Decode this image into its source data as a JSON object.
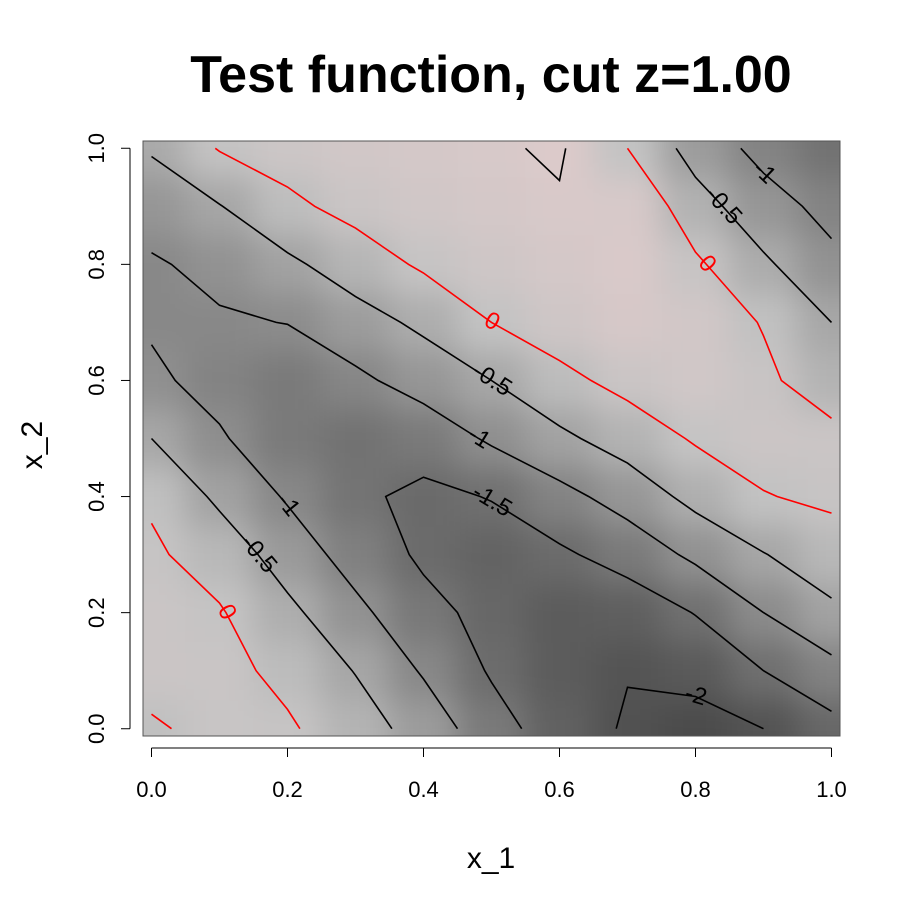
{
  "chart_data": {
    "type": "contour",
    "title": "Test function, cut z=1.00",
    "xlabel": "x_1",
    "ylabel": "x_2",
    "x": [
      0,
      0.1,
      0.2,
      0.3,
      0.4,
      0.5,
      0.6,
      0.7,
      0.8,
      0.9,
      1
    ],
    "y": [
      0,
      0.1,
      0.2,
      0.3,
      0.4,
      0.5,
      0.6,
      0.7,
      0.8,
      0.9,
      1
    ],
    "z": [
      [
        -0.05,
        0.12,
        0.06,
        -0.27,
        -0.7,
        -1.3,
        -1.75,
        -2.05,
        -2.15,
        -2.0,
        -1.65
      ],
      [
        0.15,
        0.14,
        -0.12,
        -0.52,
        -1.05,
        -1.55,
        -1.85,
        -1.98,
        -1.88,
        -1.5,
        -1.15
      ],
      [
        0.15,
        0.04,
        -0.38,
        -0.88,
        -1.35,
        -1.65,
        -1.85,
        -1.8,
        -1.48,
        -1.0,
        -0.6
      ],
      [
        0.07,
        -0.2,
        -0.73,
        -1.2,
        -1.58,
        -1.72,
        -1.58,
        -1.3,
        -0.9,
        -0.52,
        -0.2
      ],
      [
        -0.06,
        -0.6,
        -1.05,
        -1.42,
        -1.6,
        -1.48,
        -1.15,
        -0.8,
        -0.35,
        -0.02,
        0.08
      ],
      [
        -0.5,
        -0.95,
        -1.3,
        -1.45,
        -1.3,
        -0.93,
        -0.6,
        -0.28,
        0.05,
        0.17,
        0.15
      ],
      [
        -0.92,
        -1.15,
        -1.3,
        -1.1,
        -0.8,
        -0.5,
        -0.13,
        0.15,
        0.28,
        0.1,
        -0.28
      ],
      [
        -1.05,
        -1.05,
        -0.99,
        -0.7,
        -0.4,
        0.0,
        0.25,
        0.42,
        0.3,
        -0.03,
        -0.5
      ],
      [
        -1.05,
        -0.88,
        -0.6,
        -0.25,
        0.07,
        0.25,
        0.38,
        0.48,
        0.08,
        -0.42,
        -0.88
      ],
      [
        -0.8,
        -0.52,
        -0.1,
        0.15,
        0.28,
        0.38,
        0.46,
        0.45,
        -0.3,
        -0.8,
        -1.15
      ],
      [
        -0.45,
        0.03,
        0.2,
        0.3,
        0.38,
        0.45,
        0.55,
        0.0,
        -0.7,
        -1.15,
        -1.45
      ]
    ],
    "palette": [
      "#4b4b4b",
      "#c3c3c3",
      "#dccaca"
    ],
    "contours": [
      {
        "level": -2,
        "color": "#000000"
      },
      {
        "level": -1.5,
        "color": "#000000"
      },
      {
        "level": -1,
        "color": "#000000"
      },
      {
        "level": -0.5,
        "color": "#000000"
      },
      {
        "level": 0,
        "color": "#ff0000"
      },
      {
        "level": 0.5,
        "color": "#000000"
      }
    ],
    "xlim": [
      -0.0125,
      1.0125
    ],
    "ylim": [
      -0.0125,
      1.0125
    ],
    "xticks": [
      {
        "value": 0,
        "label": "0.0"
      },
      0.2,
      0.4,
      0.6,
      0.8,
      {
        "value": 1,
        "label": "1.0"
      }
    ],
    "yticks": [
      {
        "value": 0,
        "label": "0.0"
      },
      0.2,
      0.4,
      0.6,
      0.8,
      {
        "value": 1,
        "label": "1.0"
      }
    ]
  }
}
